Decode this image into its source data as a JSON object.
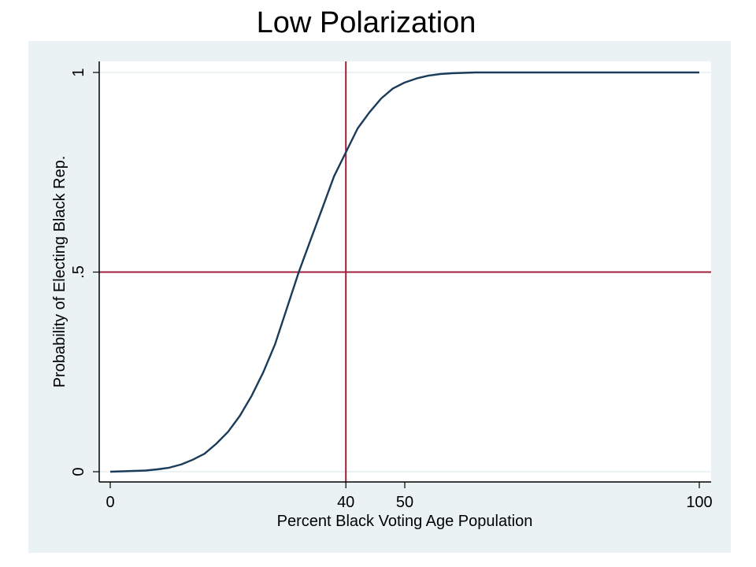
{
  "slide": {
    "title": "Low Polarization"
  },
  "chart_data": {
    "type": "line",
    "title": "Low Polarization",
    "xlabel": "Percent Black Voting Age Population",
    "ylabel": "Probability of Electing Black Rep.",
    "xlim": [
      0,
      100
    ],
    "ylim": [
      0,
      1
    ],
    "x_ticks": [
      {
        "value": 0,
        "label": "0"
      },
      {
        "value": 40,
        "label": "40"
      },
      {
        "value": 50,
        "label": "50"
      },
      {
        "value": 100,
        "label": "100"
      }
    ],
    "y_ticks": [
      {
        "value": 0,
        "label": "0"
      },
      {
        "value": 0.5,
        "label": ".5"
      },
      {
        "value": 1,
        "label": "1"
      }
    ],
    "reference_lines": [
      {
        "axis": "x",
        "value": 40,
        "color": "#a0203c"
      },
      {
        "axis": "y",
        "value": 0.5,
        "color": "#a0203c"
      }
    ],
    "grid": "horizontal at y ticks",
    "series": [
      {
        "color": "#1a3c5a",
        "x": [
          0,
          2,
          4,
          6,
          8,
          10,
          12,
          14,
          16,
          18,
          20,
          22,
          24,
          26,
          28,
          30,
          32,
          34,
          36,
          38,
          40,
          42,
          44,
          46,
          48,
          50,
          52,
          54,
          56,
          58,
          60,
          62,
          64,
          66,
          68,
          70,
          72,
          74,
          76,
          78,
          80,
          82,
          84,
          86,
          88,
          90,
          92,
          94,
          96,
          98,
          100
        ],
        "y": [
          0,
          0.001,
          0.002,
          0.003,
          0.006,
          0.01,
          0.018,
          0.03,
          0.045,
          0.07,
          0.1,
          0.14,
          0.19,
          0.25,
          0.32,
          0.41,
          0.5,
          0.58,
          0.66,
          0.74,
          0.8,
          0.86,
          0.9,
          0.935,
          0.96,
          0.975,
          0.985,
          0.992,
          0.996,
          0.998,
          0.999,
          1,
          1,
          1,
          1,
          1,
          1,
          1,
          1,
          1,
          1,
          1,
          1,
          1,
          1,
          1,
          1,
          1,
          1,
          1,
          1
        ]
      }
    ]
  }
}
